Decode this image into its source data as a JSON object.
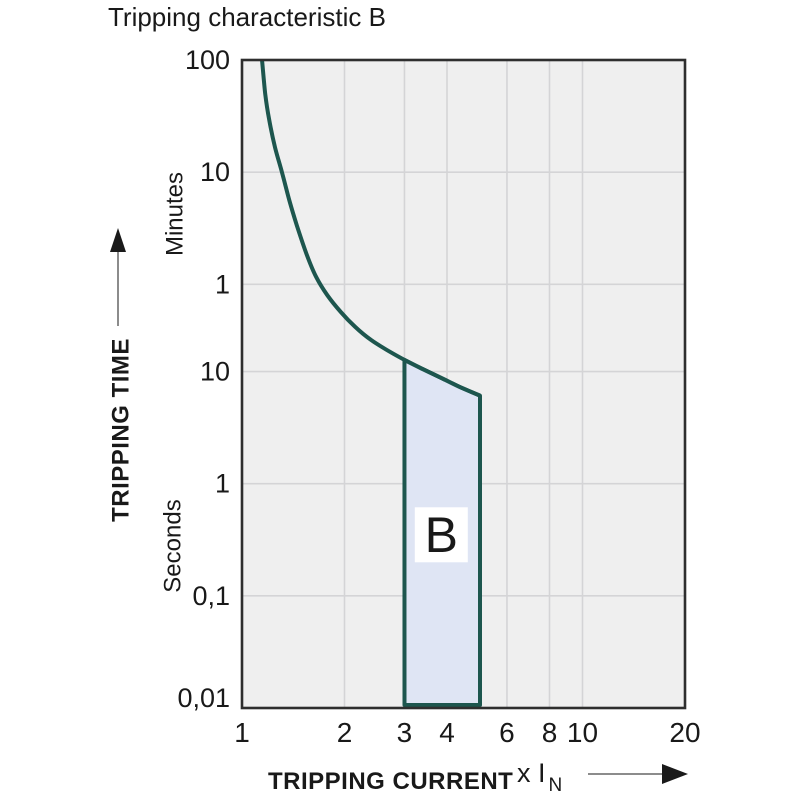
{
  "title": "Tripping characteristic B",
  "axes": {
    "y_title": "TRIPPING TIME",
    "y_unit_top": "Minutes",
    "y_unit_bottom": "Seconds",
    "x_title": "TRIPPING CURRENT",
    "x_unit": "x I",
    "x_unit_subscript": "N"
  },
  "colors": {
    "curve": "#1d564e",
    "band_fill": "#dfe5f4",
    "plot_bg": "#efefef",
    "gridline": "#d4d4d6",
    "plot_border": "#2e2e2e",
    "text": "#191919",
    "arrow_line": "#8c8c8c",
    "arrow_head": "#1a1a1a",
    "band_label_bg": "#ffffff"
  },
  "chart_data": {
    "type": "line",
    "title": "Tripping characteristic B",
    "x_axis": {
      "label": "TRIPPING CURRENT x IN",
      "scale": "log",
      "min": 1,
      "max": 20,
      "ticks": [
        {
          "label": "1",
          "value": 1
        },
        {
          "label": "2",
          "value": 2
        },
        {
          "label": "3",
          "value": 3
        },
        {
          "label": "4",
          "value": 4
        },
        {
          "label": "6",
          "value": 6
        },
        {
          "label": "8",
          "value": 8
        },
        {
          "label": "10",
          "value": 10
        },
        {
          "label": "20",
          "value": 20
        }
      ]
    },
    "y_axis": {
      "label": "TRIPPING TIME",
      "scale": "log",
      "min_seconds": 0.01,
      "max_seconds": 6000,
      "ticks": [
        {
          "label": "100",
          "seconds": 6000,
          "unit": "Minutes"
        },
        {
          "label": "10",
          "seconds": 600,
          "unit": "Minutes"
        },
        {
          "label": "1",
          "seconds": 60,
          "unit": "Minutes"
        },
        {
          "label": "10",
          "seconds": 10,
          "unit": "Seconds"
        },
        {
          "label": "1",
          "seconds": 1,
          "unit": "Seconds"
        },
        {
          "label": "0,1",
          "seconds": 0.1,
          "unit": "Seconds"
        },
        {
          "label": "0,01",
          "seconds": 0.01,
          "unit": "Seconds"
        }
      ],
      "grid": true
    },
    "series": [
      {
        "name": "thermal-trip-curve",
        "points": [
          [
            1.145,
            6000
          ],
          [
            1.17,
            3000
          ],
          [
            1.2,
            1800
          ],
          [
            1.25,
            1000
          ],
          [
            1.31,
            600
          ],
          [
            1.38,
            330
          ],
          [
            1.45,
            200
          ],
          [
            1.55,
            110
          ],
          [
            1.65,
            70
          ],
          [
            1.78,
            48
          ],
          [
            1.95,
            34
          ],
          [
            2.15,
            25
          ],
          [
            2.4,
            19
          ],
          [
            2.7,
            15.2
          ],
          [
            3.0,
            12.7
          ],
          [
            3.4,
            10.5
          ],
          [
            3.9,
            8.6
          ],
          [
            4.4,
            7.2
          ],
          [
            5.0,
            6.1
          ]
        ]
      }
    ],
    "band": {
      "label": "B",
      "x_start": 3,
      "x_end": 5,
      "bottom_seconds": 0.01,
      "top_edge_points": [
        [
          3.0,
          12.7
        ],
        [
          3.4,
          10.5
        ],
        [
          3.9,
          8.6
        ],
        [
          4.4,
          7.2
        ],
        [
          5.0,
          6.1
        ]
      ],
      "label_center": {
        "x": 3.85,
        "seconds": 0.35
      }
    }
  }
}
